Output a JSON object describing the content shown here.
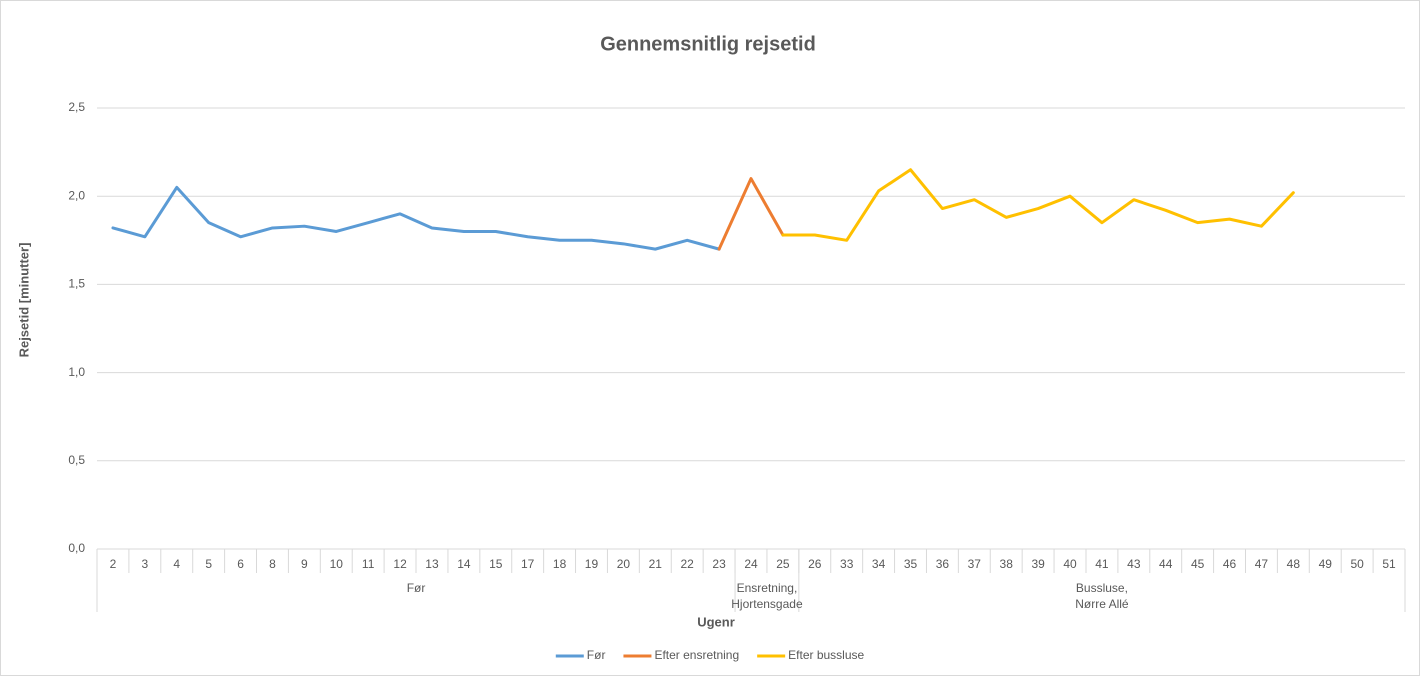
{
  "chart_data": {
    "type": "line",
    "title": "Gennemsnitlig rejsetid",
    "x_label": "Ugenr",
    "y_label": "Rejsetid [minutter]",
    "category_groups": [
      {
        "name": [
          "Før"
        ],
        "categories": [
          "2",
          "3",
          "4",
          "5",
          "6",
          "8",
          "9",
          "10",
          "11",
          "12",
          "13",
          "14",
          "15",
          "17",
          "18",
          "19",
          "20",
          "21",
          "22",
          "23"
        ]
      },
      {
        "name": [
          "Ensretning,",
          "Hjortensgade"
        ],
        "categories": [
          "24",
          "25"
        ]
      },
      {
        "name": [
          "Bussluse,",
          "Nørre Allé"
        ],
        "categories": [
          "26",
          "33",
          "34",
          "35",
          "36",
          "37",
          "38",
          "39",
          "40",
          "41",
          "43",
          "44",
          "45",
          "46",
          "47",
          "48",
          "49",
          "50",
          "51"
        ]
      }
    ],
    "series": [
      {
        "name": "Før",
        "color": "#5b9bd5",
        "values": [
          1.82,
          1.77,
          2.05,
          1.85,
          1.77,
          1.82,
          1.83,
          1.8,
          1.85,
          1.9,
          1.82,
          1.8,
          1.8,
          1.77,
          1.75,
          1.75,
          1.73,
          1.7,
          1.75,
          1.7,
          null,
          null,
          null,
          null,
          null,
          null,
          null,
          null,
          null,
          null,
          null,
          null,
          null,
          null,
          null,
          null,
          null,
          null,
          null,
          null,
          null
        ]
      },
      {
        "name": "Efter ensretning",
        "color": "#ed7d31",
        "values": [
          null,
          null,
          null,
          null,
          null,
          null,
          null,
          null,
          null,
          null,
          null,
          null,
          null,
          null,
          null,
          null,
          null,
          null,
          null,
          1.7,
          2.1,
          1.78,
          null,
          null,
          null,
          null,
          null,
          null,
          null,
          null,
          null,
          null,
          null,
          null,
          null,
          null,
          null,
          null,
          null,
          null,
          null
        ]
      },
      {
        "name": "Efter bussluse",
        "color": "#ffc000",
        "values": [
          null,
          null,
          null,
          null,
          null,
          null,
          null,
          null,
          null,
          null,
          null,
          null,
          null,
          null,
          null,
          null,
          null,
          null,
          null,
          null,
          null,
          1.78,
          1.78,
          1.75,
          2.03,
          2.15,
          1.93,
          1.98,
          1.88,
          1.93,
          2.0,
          1.85,
          1.98,
          1.92,
          1.85,
          1.87,
          1.83,
          2.02,
          null,
          null,
          null
        ]
      }
    ],
    "ylim": [
      0,
      2.5
    ],
    "yticks": [
      {
        "value": 0,
        "label": "0,0"
      },
      {
        "value": 0.5,
        "label": "0,5"
      },
      {
        "value": 1,
        "label": "1,0"
      },
      {
        "value": 1.5,
        "label": "1,5"
      },
      {
        "value": 2,
        "label": "2,0"
      },
      {
        "value": 2.5,
        "label": "2,5"
      }
    ],
    "grid": true,
    "legend": "bottom"
  }
}
